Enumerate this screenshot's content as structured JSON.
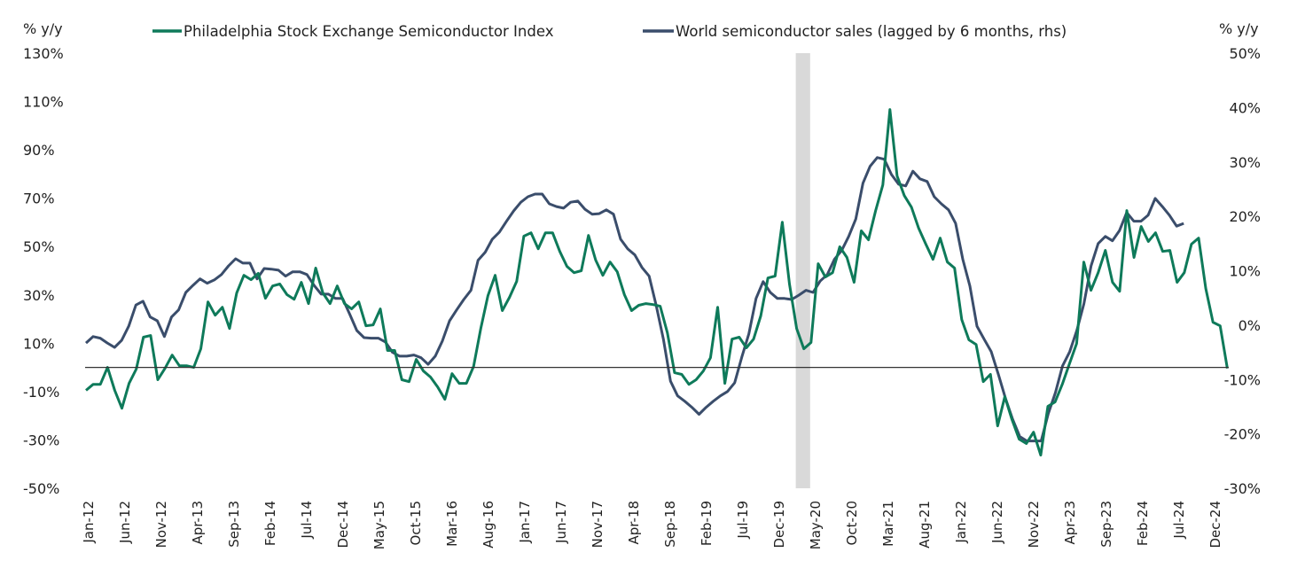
{
  "chart_data": {
    "type": "line",
    "title": "",
    "left_axis": {
      "label": "% y/y",
      "ylim": [
        -50,
        130
      ],
      "ticks": [
        -50,
        -30,
        -10,
        10,
        30,
        50,
        70,
        90,
        110,
        130
      ],
      "tick_labels": [
        "-50%",
        "-30%",
        "-10%",
        "10%",
        "30%",
        "50%",
        "70%",
        "90%",
        "110%",
        "130%"
      ]
    },
    "right_axis": {
      "label": "% y/y",
      "ylim": [
        -30,
        50
      ],
      "ticks": [
        -30,
        -20,
        -10,
        0,
        10,
        20,
        30,
        40,
        50
      ],
      "tick_labels": [
        "-30%",
        "-20%",
        "-10%",
        "0%",
        "10%",
        "20%",
        "30%",
        "40%",
        "50%"
      ]
    },
    "x_tick_labels": [
      "Jan-12",
      "Jun-12",
      "Nov-12",
      "Apr-13",
      "Sep-13",
      "Feb-14",
      "Jul-14",
      "Dec-14",
      "May-15",
      "Oct-15",
      "Mar-16",
      "Aug-16",
      "Jan-17",
      "Jun-17",
      "Nov-17",
      "Apr-18",
      "Sep-18",
      "Feb-19",
      "Jul-19",
      "Dec-19",
      "May-20",
      "Oct-20",
      "Mar-21",
      "Aug-21",
      "Jan-22",
      "Jun-22",
      "Nov-22",
      "Apr-23",
      "Sep-23",
      "Feb-24",
      "Jul-24",
      "Dec-24"
    ],
    "x_tick_step_months": 5,
    "x_start": "Jan-12",
    "zero_line": 0,
    "shaded_period": {
      "start": "Mar-20",
      "end": "Apr-20"
    },
    "grid": false,
    "legend_placement": "top",
    "series": [
      {
        "name": "Philadelphia Stock Exchange Semiconductor Index",
        "axis": "left",
        "color": "#0e7a5a",
        "start": "Jan-12",
        "end": "Feb-25",
        "values": [
          -9.5,
          -7,
          -7,
          0,
          -9.5,
          -16.9,
          -6.6,
          -0.7,
          12.5,
          13.2,
          -5.1,
          -0.4,
          5.1,
          0.7,
          0.7,
          0,
          7.7,
          27.1,
          21.6,
          24.9,
          16.1,
          30.8,
          38.1,
          36.3,
          38.9,
          28.6,
          33.7,
          34.5,
          30.1,
          28.2,
          35.2,
          26.4,
          41.1,
          30.8,
          26.4,
          33.7,
          26.4,
          24.2,
          27.1,
          17.2,
          17.6,
          24.2,
          7,
          7,
          -5.1,
          -5.9,
          3.3,
          -1.5,
          -4,
          -8.1,
          -13.2,
          -2.6,
          -6.6,
          -6.6,
          0.4,
          16.1,
          29.7,
          38.1,
          23.5,
          29,
          35.6,
          54.3,
          55.7,
          49.1,
          55.7,
          55.7,
          48,
          41.8,
          39.2,
          40,
          54.6,
          44.4,
          38.1,
          43.6,
          39.6,
          30.1,
          23.5,
          25.7,
          26.4,
          26,
          25.3,
          14.3,
          -2.2,
          -2.9,
          -7,
          -5.1,
          -1.5,
          4,
          24.9,
          -6.6,
          11.7,
          12.5,
          8.1,
          11.7,
          21.3,
          37,
          37.8,
          60.1,
          34.5,
          16.1,
          7.7,
          10.3,
          42.9,
          37.4,
          39.2,
          49.9,
          45.5,
          35.2,
          56.5,
          52.8,
          64.9,
          75.5,
          106.7,
          79.2,
          71.1,
          66.3,
          57.6,
          51,
          44.7,
          53.5,
          43.6,
          41.1,
          19.8,
          11.4,
          9.5,
          -5.9,
          -2.9,
          -24.2,
          -12.1,
          -21.6,
          -29.7,
          -31.5,
          -26.8,
          -36.3,
          -16.1,
          -14.3,
          -7,
          1.5,
          9.9,
          43.6,
          31.9,
          39.2,
          48.4,
          35.2,
          31.5,
          64.9,
          45.5,
          58.3,
          52.1,
          55.7,
          48,
          48.4,
          35.2,
          39.2,
          51,
          53.5,
          32.6,
          18.7,
          17.2,
          -0.4
        ]
      },
      {
        "name": "World semiconductor sales (lagged by 6 months, rhs)",
        "axis": "right",
        "color": "#3a4d6b",
        "start": "Jan-12",
        "end": "Aug-24",
        "values": [
          -3.3,
          -2.1,
          -2.4,
          -3.3,
          -4.1,
          -2.8,
          -0.2,
          3.7,
          4.4,
          1.5,
          0.8,
          -2.1,
          1.5,
          2.8,
          6,
          7.3,
          8.5,
          7.7,
          8.3,
          9.3,
          10.9,
          12.2,
          11.4,
          11.4,
          8.5,
          10.4,
          10.3,
          10.1,
          9,
          9.8,
          9.8,
          9.3,
          7.3,
          5.7,
          5.7,
          4.9,
          4.9,
          2,
          -1,
          -2.3,
          -2.4,
          -2.4,
          -3.1,
          -5,
          -5.7,
          -5.7,
          -5.5,
          -6,
          -7.2,
          -5.7,
          -2.9,
          0.8,
          2.8,
          4.7,
          6.4,
          11.9,
          13.4,
          15.8,
          17.1,
          19.1,
          21,
          22.6,
          23.6,
          24.1,
          24.1,
          22.3,
          21.8,
          21.5,
          22.6,
          22.8,
          21.3,
          20.4,
          20.5,
          21.2,
          20.4,
          15.8,
          14,
          12.9,
          10.6,
          9,
          3.6,
          -2.6,
          -10.3,
          -13,
          -14,
          -15.1,
          -16.4,
          -15.1,
          -14,
          -13,
          -12.2,
          -10.6,
          -5.9,
          -1.6,
          4.9,
          8,
          6,
          4.9,
          4.9,
          4.7,
          5.5,
          6.4,
          6,
          8.1,
          9.3,
          12.1,
          13.7,
          16.3,
          19.5,
          26.1,
          29.2,
          30.8,
          30.5,
          27.7,
          25.9,
          25.6,
          28.3,
          26.9,
          26.4,
          23.6,
          22.3,
          21.2,
          18.7,
          12.1,
          7.2,
          -0.2,
          -2.6,
          -4.9,
          -9.1,
          -13.5,
          -17.3,
          -20.5,
          -21.3,
          -21.3,
          -21.3,
          -16.3,
          -12.4,
          -7.5,
          -4.9,
          -1,
          3.9,
          10.9,
          15,
          16.3,
          15.5,
          17.4,
          20.7,
          19.1,
          19.1,
          20.2,
          23.3,
          21.8,
          20.2,
          18.2,
          18.7
        ]
      }
    ]
  }
}
